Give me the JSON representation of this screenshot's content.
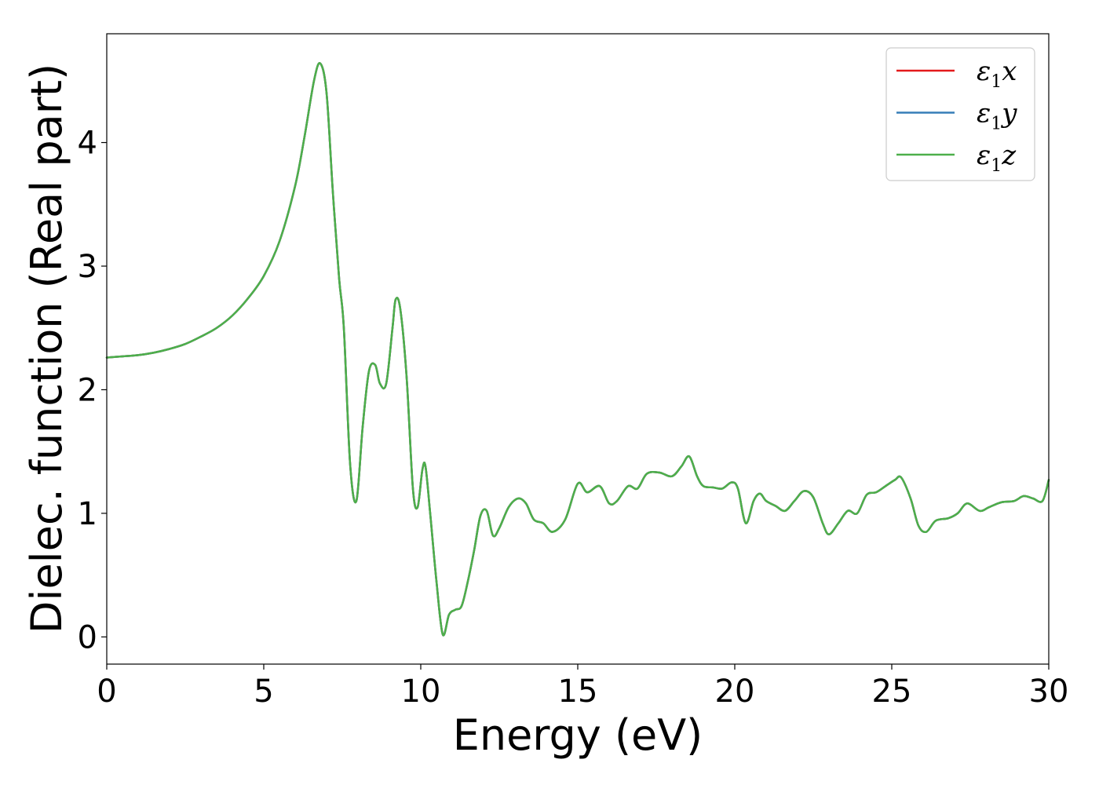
{
  "chart_data": {
    "type": "line",
    "title": "",
    "xlabel": "Energy (eV)",
    "ylabel": "Dielec. function (Real part)",
    "xlim": [
      0,
      30
    ],
    "ylim": [
      -0.22,
      4.88
    ],
    "xticks": [
      "0",
      "5",
      "10",
      "15",
      "20",
      "25",
      "30"
    ],
    "yticks": [
      "0",
      "1",
      "2",
      "3",
      "4"
    ],
    "grid": false,
    "legend_position": "top-right",
    "series": [
      {
        "name": "ε1x",
        "symbol": "ε",
        "sub": "1",
        "axis": "x",
        "color": "#e41a1c"
      },
      {
        "name": "ε1y",
        "symbol": "ε",
        "sub": "1",
        "axis": "y",
        "color": "#377eb8"
      },
      {
        "name": "ε1z",
        "symbol": "ε",
        "sub": "1",
        "axis": "z",
        "color": "#4daf4a"
      }
    ],
    "x": [
      0,
      0.5,
      1,
      1.5,
      2,
      2.5,
      3,
      3.5,
      4,
      4.5,
      5,
      5.5,
      6,
      6.3,
      6.6,
      6.8,
      7.0,
      7.2,
      7.4,
      7.55,
      7.75,
      7.95,
      8.15,
      8.35,
      8.55,
      8.7,
      8.9,
      9.1,
      9.2,
      9.35,
      9.55,
      9.75,
      9.9,
      10.05,
      10.15,
      10.3,
      10.5,
      10.7,
      10.9,
      11.1,
      11.3,
      11.5,
      11.7,
      11.9,
      12.1,
      12.3,
      12.5,
      12.8,
      13.1,
      13.35,
      13.6,
      13.9,
      14.2,
      14.6,
      15.0,
      15.3,
      15.7,
      16.0,
      16.25,
      16.6,
      16.9,
      17.2,
      17.6,
      18.0,
      18.3,
      18.55,
      18.8,
      19.0,
      19.3,
      19.6,
      19.9,
      20.1,
      20.35,
      20.6,
      20.8,
      21.0,
      21.3,
      21.6,
      21.9,
      22.2,
      22.5,
      22.8,
      23.0,
      23.3,
      23.6,
      23.9,
      24.2,
      24.5,
      24.8,
      25.1,
      25.3,
      25.6,
      25.85,
      26.1,
      26.4,
      26.8,
      27.1,
      27.4,
      27.8,
      28.1,
      28.5,
      28.9,
      29.2,
      29.5,
      29.8,
      30.0
    ],
    "y": [
      2.26,
      2.27,
      2.28,
      2.3,
      2.33,
      2.37,
      2.43,
      2.5,
      2.6,
      2.74,
      2.92,
      3.2,
      3.65,
      4.05,
      4.5,
      4.64,
      4.4,
      3.6,
      2.9,
      2.5,
      1.4,
      1.1,
      1.7,
      2.15,
      2.2,
      2.05,
      2.05,
      2.5,
      2.73,
      2.65,
      2.1,
      1.2,
      1.05,
      1.35,
      1.38,
      1.0,
      0.45,
      0.02,
      0.18,
      0.22,
      0.25,
      0.45,
      0.7,
      0.98,
      1.02,
      0.82,
      0.88,
      1.05,
      1.12,
      1.08,
      0.95,
      0.92,
      0.85,
      0.95,
      1.24,
      1.17,
      1.22,
      1.08,
      1.1,
      1.22,
      1.2,
      1.32,
      1.33,
      1.3,
      1.38,
      1.46,
      1.3,
      1.22,
      1.21,
      1.2,
      1.25,
      1.2,
      0.92,
      1.1,
      1.16,
      1.1,
      1.06,
      1.02,
      1.1,
      1.18,
      1.13,
      0.92,
      0.83,
      0.92,
      1.02,
      1.0,
      1.15,
      1.17,
      1.22,
      1.27,
      1.29,
      1.12,
      0.9,
      0.85,
      0.94,
      0.96,
      1.0,
      1.08,
      1.02,
      1.05,
      1.09,
      1.1,
      1.14,
      1.12,
      1.1,
      1.27
    ]
  }
}
